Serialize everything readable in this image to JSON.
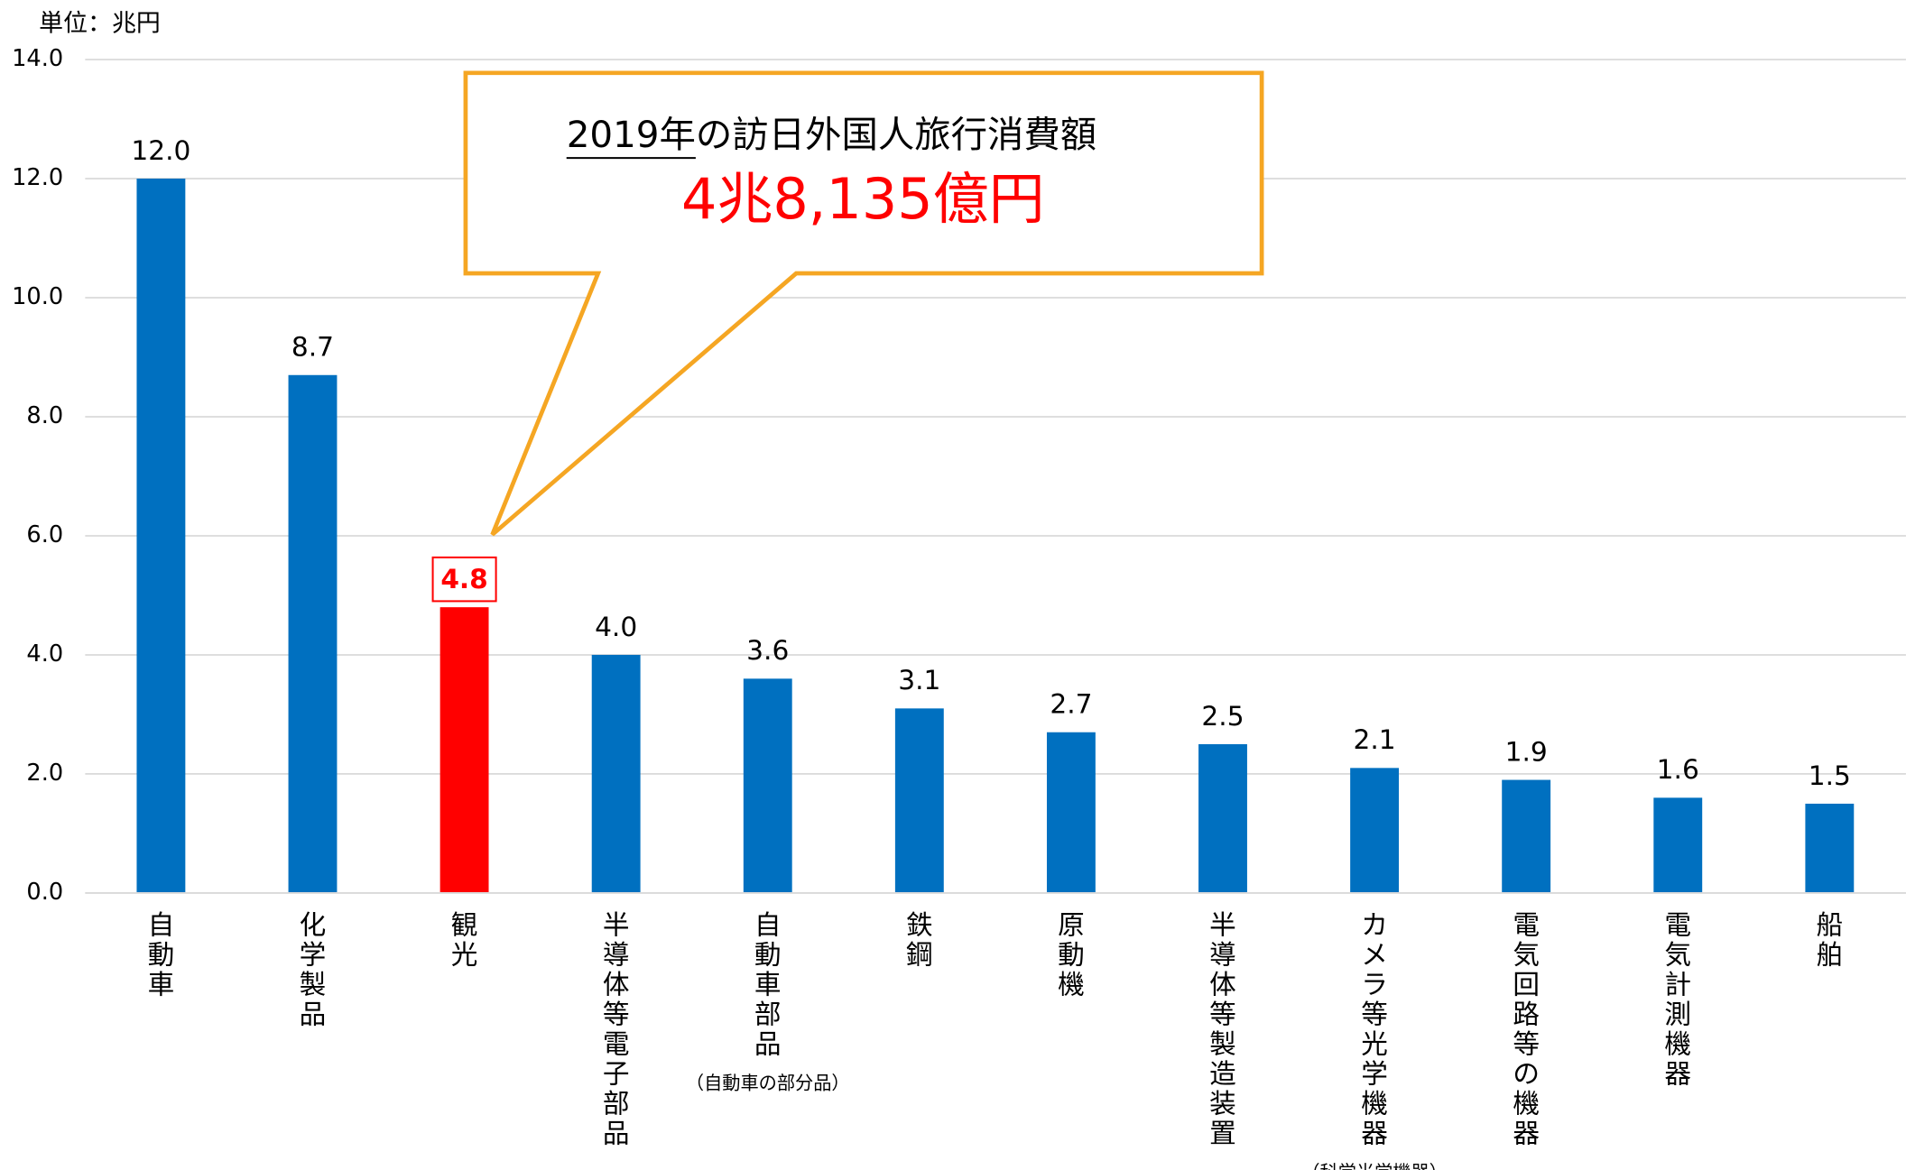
{
  "chart_data": {
    "type": "bar",
    "unit_label": "単位：兆円",
    "categories": [
      "自動車",
      "化学製品",
      "観光",
      "半導体等電子部品",
      "自動車部品",
      "鉄鋼",
      "原動機",
      "半導体等製造装置",
      "カメラ等光学機器",
      "電気回路等の機器",
      "電気計測機器",
      "船舶"
    ],
    "category_notes": [
      null,
      null,
      null,
      null,
      "（自動車の部分品）",
      null,
      null,
      null,
      "（科学光学機器）",
      null,
      null,
      null
    ],
    "values": [
      12.0,
      8.7,
      4.8,
      4.0,
      3.6,
      3.1,
      2.7,
      2.5,
      2.1,
      1.9,
      1.6,
      1.5
    ],
    "value_labels": [
      "12.0",
      "8.7",
      "4.8",
      "4.0",
      "3.6",
      "3.1",
      "2.7",
      "2.5",
      "2.1",
      "1.9",
      "1.6",
      "1.5"
    ],
    "color": "#0070c0",
    "colors": [
      "#0070c0",
      "#0070c0",
      "#ff0000",
      "#0070c0",
      "#0070c0",
      "#0070c0",
      "#0070c0",
      "#0070c0",
      "#0070c0",
      "#0070c0",
      "#0070c0",
      "#0070c0"
    ],
    "ylim": [
      0,
      14
    ],
    "yticks": [
      {
        "value": 0,
        "label": "0.0"
      },
      {
        "value": 2,
        "label": "2.0"
      },
      {
        "value": 4,
        "label": "4.0"
      },
      {
        "value": 6,
        "label": "6.0"
      },
      {
        "value": 8,
        "label": "8.0"
      },
      {
        "value": 10,
        "label": "10.0"
      },
      {
        "value": 12,
        "label": "12.0"
      },
      {
        "value": 14,
        "label": "14.0"
      }
    ],
    "grid": true,
    "callout": {
      "heading_year": "2019年",
      "heading_rest": "の訪日外国人旅行消費額",
      "amount": "4兆8,135億円"
    }
  }
}
